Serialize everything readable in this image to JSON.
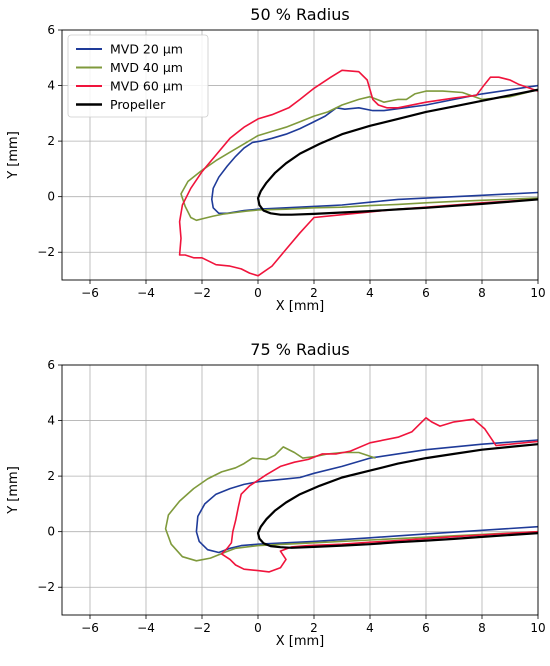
{
  "colors": {
    "MVD 20 µm": "#1f3b99",
    "MVD 40 µm": "#7f9a3c",
    "MVD 60 µm": "#f0143c",
    "Propeller": "#000000"
  },
  "chart_data": [
    {
      "type": "line",
      "title": "50 % Radius",
      "xlabel": "X [mm]",
      "ylabel": "Y [mm]",
      "xlim": [
        -7,
        10
      ],
      "ylim": [
        -3,
        6
      ],
      "xticks": [
        -6,
        -4,
        -2,
        0,
        2,
        4,
        6,
        8,
        10
      ],
      "yticks": [
        -2,
        0,
        2,
        4,
        6
      ],
      "grid": true,
      "legend": "upper-left",
      "series": [
        {
          "name": "MVD 20 µm",
          "x": [
            10,
            8,
            6,
            4.5,
            4.1,
            3.6,
            3.1,
            2.8,
            2.4,
            1.9,
            1.5,
            1.0,
            0.5,
            0.1,
            -0.2,
            -0.5,
            -0.8,
            -1.1,
            -1.4,
            -1.6,
            -1.65,
            -1.6,
            -1.4,
            -1.1,
            -0.8,
            -0.5,
            0,
            1,
            2,
            3,
            4,
            5,
            6,
            7,
            8,
            9,
            10
          ],
          "y": [
            4.0,
            3.7,
            3.3,
            3.1,
            3.1,
            3.2,
            3.15,
            3.2,
            2.9,
            2.65,
            2.45,
            2.25,
            2.1,
            2.0,
            1.95,
            1.75,
            1.45,
            1.1,
            0.7,
            0.3,
            -0.1,
            -0.4,
            -0.6,
            -0.6,
            -0.55,
            -0.5,
            -0.45,
            -0.4,
            -0.35,
            -0.3,
            -0.2,
            -0.1,
            -0.05,
            0,
            0.05,
            0.1,
            0.15
          ]
        },
        {
          "name": "MVD 40 µm",
          "x": [
            10,
            9.0,
            8.0,
            7.3,
            6.6,
            6.0,
            5.6,
            5.3,
            5.0,
            4.5,
            4.0,
            3.6,
            3.0,
            2.5,
            2.0,
            1.5,
            1.0,
            0.5,
            0.0,
            -0.5,
            -1.0,
            -1.5,
            -2.0,
            -2.5,
            -2.75,
            -2.6,
            -2.4,
            -2.2,
            -2.0,
            -1.6,
            -1.2,
            -0.8,
            -0.4,
            0,
            1,
            2,
            3,
            4,
            5,
            6,
            7,
            8,
            9,
            10
          ],
          "y": [
            3.85,
            3.6,
            3.5,
            3.75,
            3.8,
            3.8,
            3.7,
            3.5,
            3.5,
            3.4,
            3.6,
            3.5,
            3.3,
            3.05,
            2.9,
            2.7,
            2.5,
            2.35,
            2.2,
            1.9,
            1.6,
            1.3,
            0.95,
            0.55,
            0.1,
            -0.35,
            -0.75,
            -0.85,
            -0.8,
            -0.7,
            -0.62,
            -0.57,
            -0.52,
            -0.48,
            -0.45,
            -0.4,
            -0.38,
            -0.32,
            -0.28,
            -0.22,
            -0.17,
            -0.13,
            -0.09,
            -0.05
          ]
        },
        {
          "name": "MVD 60 µm",
          "x": [
            10,
            9.3,
            9.0,
            8.6,
            8.3,
            8.1,
            7.8,
            7.0,
            6.0,
            5.0,
            4.6,
            4.3,
            4.1,
            3.9,
            3.6,
            3.0,
            2.6,
            2.0,
            1.5,
            1.1,
            0.5,
            0.0,
            -0.5,
            -1.0,
            -1.5,
            -2.0,
            -2.4,
            -2.7,
            -2.8,
            -2.75,
            -2.8,
            -2.6,
            -2.3,
            -2.0,
            -1.5,
            -1.0,
            -0.6,
            -0.3,
            0,
            0.5,
            1.0,
            1.5,
            2.0,
            3,
            4,
            5,
            6,
            7,
            8,
            9,
            10
          ],
          "y": [
            3.8,
            4.05,
            4.2,
            4.3,
            4.3,
            4.05,
            3.65,
            3.55,
            3.4,
            3.2,
            3.2,
            3.3,
            3.5,
            4.2,
            4.5,
            4.55,
            4.3,
            3.9,
            3.5,
            3.2,
            2.95,
            2.8,
            2.5,
            2.1,
            1.5,
            0.9,
            0.3,
            -0.3,
            -0.9,
            -1.5,
            -2.1,
            -2.1,
            -2.2,
            -2.2,
            -2.45,
            -2.5,
            -2.6,
            -2.75,
            -2.85,
            -2.5,
            -1.9,
            -1.3,
            -0.75,
            -0.65,
            -0.55,
            -0.45,
            -0.38,
            -0.3,
            -0.22,
            -0.16,
            -0.1
          ]
        },
        {
          "name": "Propeller",
          "x": [
            10,
            9,
            8,
            7,
            6,
            5,
            4,
            3,
            2.2,
            1.5,
            1.0,
            0.6,
            0.3,
            0.1,
            0.0,
            0.05,
            0.2,
            0.45,
            0.8,
            1.2,
            2,
            3,
            4,
            5,
            6,
            7,
            8,
            9,
            10
          ],
          "y": [
            3.85,
            3.65,
            3.45,
            3.25,
            3.05,
            2.8,
            2.55,
            2.25,
            1.9,
            1.55,
            1.2,
            0.85,
            0.5,
            0.2,
            -0.05,
            -0.3,
            -0.5,
            -0.6,
            -0.65,
            -0.65,
            -0.62,
            -0.57,
            -0.52,
            -0.46,
            -0.4,
            -0.33,
            -0.26,
            -0.18,
            -0.1
          ]
        }
      ]
    },
    {
      "type": "line",
      "title": "75 % Radius",
      "xlabel": "X [mm]",
      "ylabel": "Y [mm]",
      "xlim": [
        -7,
        10
      ],
      "ylim": [
        -3,
        6
      ],
      "xticks": [
        -6,
        -4,
        -2,
        0,
        2,
        4,
        6,
        8,
        10
      ],
      "yticks": [
        -2,
        0,
        2,
        4,
        6
      ],
      "grid": true,
      "legend": "none",
      "series": [
        {
          "name": "MVD 20 µm",
          "x": [
            10,
            8,
            6,
            4,
            3,
            2,
            1.5,
            1.0,
            0.5,
            0.0,
            -0.5,
            -1.0,
            -1.5,
            -1.9,
            -2.15,
            -2.2,
            -2.1,
            -1.8,
            -1.4,
            -1.0,
            -0.6,
            0,
            1,
            2,
            4,
            6,
            8,
            10
          ],
          "y": [
            3.3,
            3.15,
            2.95,
            2.65,
            2.35,
            2.1,
            1.95,
            1.9,
            1.85,
            1.8,
            1.7,
            1.55,
            1.35,
            1.0,
            0.55,
            0.0,
            -0.35,
            -0.65,
            -0.75,
            -0.6,
            -0.5,
            -0.45,
            -0.4,
            -0.35,
            -0.22,
            -0.08,
            0.05,
            0.18
          ]
        },
        {
          "name": "MVD 40 µm",
          "x": [
            4.2,
            3.6,
            3.0,
            2.5,
            2.0,
            1.6,
            1.3,
            0.9,
            0.6,
            0.3,
            -0.2,
            -0.5,
            -0.8,
            -1.3,
            -1.8,
            -2.3,
            -2.8,
            -3.2,
            -3.3,
            -3.1,
            -2.7,
            -2.2,
            -1.7,
            -1.2,
            -0.8,
            0,
            1,
            2,
            4,
            6,
            8,
            10
          ],
          "y": [
            2.65,
            2.85,
            2.85,
            2.8,
            2.7,
            2.65,
            2.85,
            3.05,
            2.75,
            2.6,
            2.65,
            2.45,
            2.3,
            2.15,
            1.9,
            1.55,
            1.1,
            0.6,
            0.1,
            -0.45,
            -0.9,
            -1.05,
            -0.95,
            -0.75,
            -0.6,
            -0.5,
            -0.45,
            -0.4,
            -0.3,
            -0.2,
            -0.1,
            0.0
          ]
        },
        {
          "name": "MVD 60 µm",
          "x": [
            10,
            9,
            8.5,
            8.1,
            7.7,
            7.0,
            6.5,
            6.2,
            6.0,
            5.5,
            5.0,
            4.0,
            3.3,
            2.8,
            2.3,
            1.8,
            1.3,
            0.8,
            0.3,
            0.0,
            -0.3,
            -0.6,
            -0.7,
            -0.8,
            -0.9,
            -0.95,
            -1.1,
            -1.3,
            -1.0,
            -0.8,
            -0.5,
            0,
            0.4,
            0.8,
            1.0,
            0.8,
            1.2,
            1.8,
            3,
            4,
            5,
            6,
            7,
            8,
            9,
            10
          ],
          "y": [
            3.25,
            3.15,
            3.1,
            3.7,
            4.05,
            3.95,
            3.8,
            3.95,
            4.1,
            3.6,
            3.4,
            3.2,
            2.9,
            2.8,
            2.8,
            2.6,
            2.5,
            2.35,
            2.05,
            1.85,
            1.65,
            1.35,
            0.9,
            0.4,
            0.0,
            -0.4,
            -0.6,
            -0.8,
            -1.0,
            -1.2,
            -1.35,
            -1.4,
            -1.45,
            -1.3,
            -1.0,
            -0.7,
            -0.55,
            -0.5,
            -0.45,
            -0.38,
            -0.32,
            -0.25,
            -0.18,
            -0.12,
            -0.06,
            0.0
          ]
        },
        {
          "name": "Propeller",
          "x": [
            10,
            9,
            8,
            7,
            6,
            5,
            4,
            3,
            2.2,
            1.5,
            1.0,
            0.6,
            0.3,
            0.1,
            0.0,
            0.05,
            0.2,
            0.45,
            0.8,
            1.2,
            2,
            3,
            4,
            5,
            6,
            7,
            8,
            9,
            10
          ],
          "y": [
            3.15,
            3.05,
            2.95,
            2.8,
            2.65,
            2.45,
            2.2,
            1.95,
            1.65,
            1.35,
            1.05,
            0.75,
            0.45,
            0.18,
            -0.05,
            -0.25,
            -0.42,
            -0.52,
            -0.56,
            -0.58,
            -0.55,
            -0.5,
            -0.45,
            -0.38,
            -0.32,
            -0.26,
            -0.19,
            -0.12,
            -0.05
          ]
        }
      ]
    }
  ]
}
